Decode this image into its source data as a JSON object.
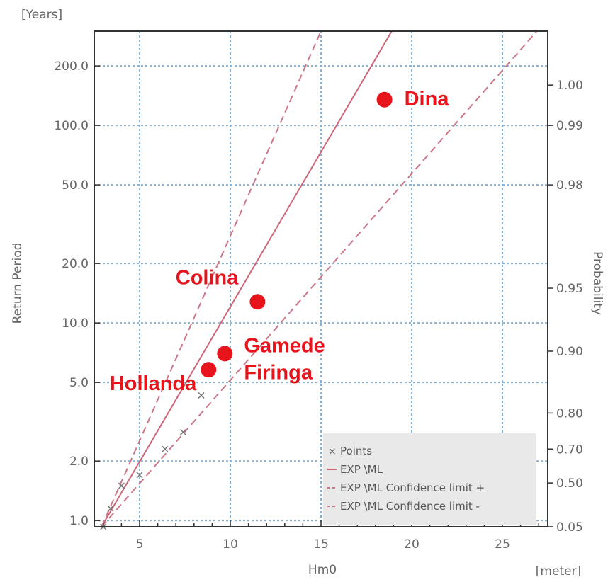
{
  "chart_data": {
    "type": "scatter",
    "title": "",
    "xlabel": "Hm0",
    "x_unit": "[meter]",
    "ylabel": "Return Period",
    "y_unit": "[Years]",
    "y2label": "Probability",
    "xlim": [
      2.5,
      27.5
    ],
    "ylim": [
      0.93,
      300
    ],
    "y_scale": "log",
    "grid": true,
    "x_ticks": [
      5,
      10,
      15,
      20,
      25
    ],
    "y_ticks": [
      1.0,
      2.0,
      5.0,
      10.0,
      20.0,
      50.0,
      100.0,
      200.0
    ],
    "y_tick_labels": [
      "1.0",
      "2.0",
      "5.0",
      "10.0",
      "20.0",
      "50.0",
      "100.0",
      "200.0"
    ],
    "prob_ticks": [
      {
        "label": "0.05",
        "return_period": 0.93
      },
      {
        "label": "0.50",
        "return_period": 1.55
      },
      {
        "label": "0.70",
        "return_period": 2.3
      },
      {
        "label": "0.80",
        "return_period": 3.5
      },
      {
        "label": "0.90",
        "return_period": 7.2
      },
      {
        "label": "0.95",
        "return_period": 15.0
      },
      {
        "label": "0.98",
        "return_period": 50.0
      },
      {
        "label": "0.99",
        "return_period": 100.0
      },
      {
        "label": "1.00",
        "return_period": 160.0
      }
    ],
    "legend_position": "bottom-right",
    "legend": [
      {
        "label": "Points",
        "style": "marker"
      },
      {
        "label": "EXP \\ML",
        "style": "solid"
      },
      {
        "label": "EXP \\ML Confidence limit +",
        "style": "dashed"
      },
      {
        "label": "EXP \\ML Confidence limit -",
        "style": "dashed"
      }
    ],
    "series": [
      {
        "name": "EXP \\ML",
        "style": "solid",
        "x": [
          2.9,
          18.9
        ],
        "y": [
          0.93,
          300
        ]
      },
      {
        "name": "EXP \\ML Confidence limit +",
        "style": "dashed",
        "x": [
          2.9,
          15.0
        ],
        "y": [
          0.93,
          300
        ]
      },
      {
        "name": "EXP \\ML Confidence limit -",
        "style": "dashed",
        "x": [
          2.9,
          26.9
        ],
        "y": [
          0.93,
          300
        ]
      },
      {
        "name": "Points",
        "style": "marker",
        "x": [
          3.0,
          3.4,
          4.0,
          5.0,
          6.4,
          7.4,
          8.4
        ],
        "y": [
          0.93,
          1.15,
          1.5,
          1.7,
          2.3,
          2.8,
          4.3
        ]
      }
    ],
    "highlighted_events": [
      {
        "label": "Dina",
        "x": 18.5,
        "y": 135
      },
      {
        "label": "Colina",
        "x": 11.5,
        "y": 12.8
      },
      {
        "label": "Gamede",
        "x": 9.7,
        "y": 7.0
      },
      {
        "label": "Firinga",
        "x": 9.7,
        "y": 7.0
      },
      {
        "label": "Hollanda",
        "x": 8.8,
        "y": 5.8
      }
    ],
    "colors": {
      "highlight": "#e8141b",
      "fit_line": "#cc6677",
      "confidence": "#cc7788",
      "grid": "#7fb2dc",
      "legend_bg": "#e9e9e9",
      "axis": "#333333"
    }
  }
}
